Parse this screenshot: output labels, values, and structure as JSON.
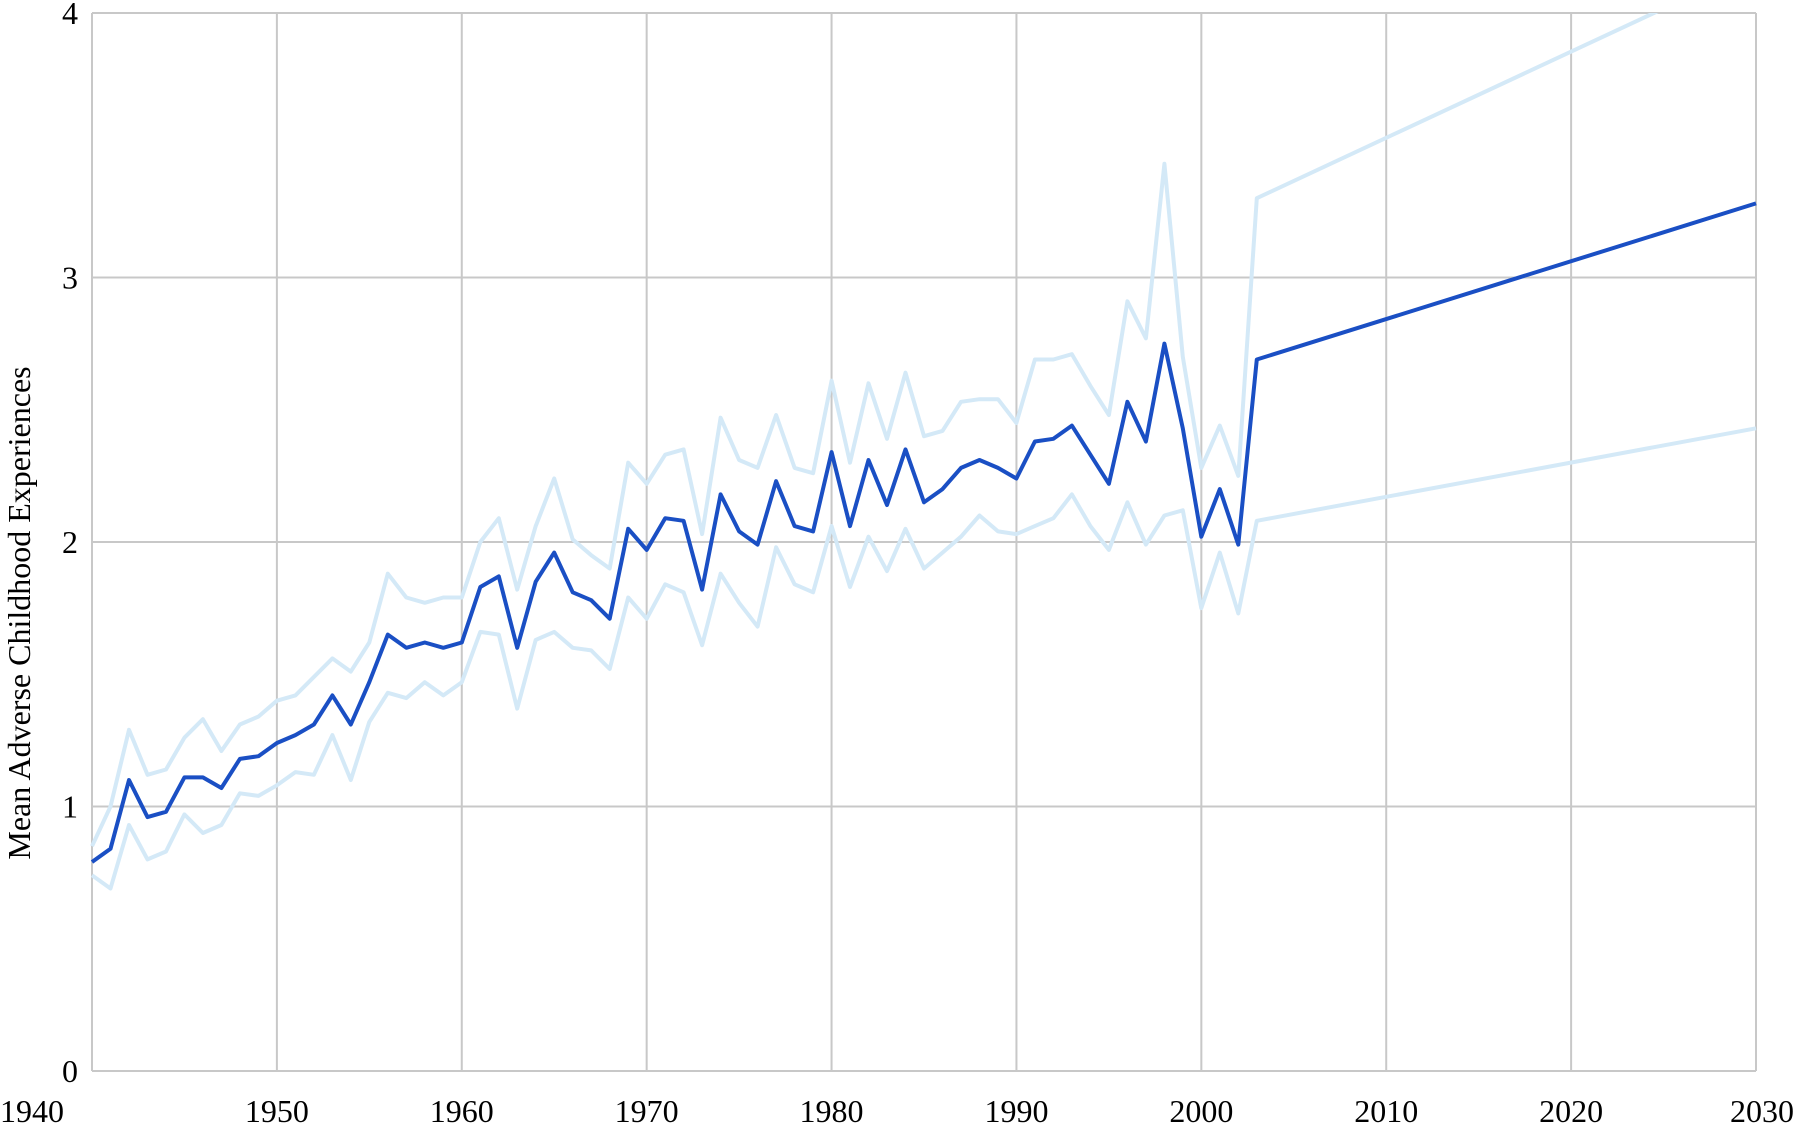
{
  "chart_data": {
    "type": "line",
    "title": "",
    "xlabel": "",
    "ylabel": "Mean Adverse Childhood Experiences",
    "xlim": [
      1940,
      2030
    ],
    "ylim": [
      0,
      4
    ],
    "xticks": [
      1940,
      1950,
      1960,
      1970,
      1980,
      1990,
      2000,
      2010,
      2020,
      2030
    ],
    "yticks": [
      0,
      1,
      2,
      3,
      4
    ],
    "grid": true,
    "legend": "none",
    "colors": {
      "mean": "#1a4fc4",
      "bounds": "#d4e9f7",
      "grid": "#c8c8c8"
    },
    "x": [
      1940,
      1941,
      1942,
      1943,
      1944,
      1945,
      1946,
      1947,
      1948,
      1949,
      1950,
      1951,
      1952,
      1953,
      1954,
      1955,
      1956,
      1957,
      1958,
      1959,
      1960,
      1961,
      1962,
      1963,
      1964,
      1965,
      1966,
      1967,
      1968,
      1969,
      1970,
      1971,
      1972,
      1973,
      1974,
      1975,
      1976,
      1977,
      1978,
      1979,
      1980,
      1981,
      1982,
      1983,
      1984,
      1985,
      1986,
      1987,
      1988,
      1989,
      1990,
      1991,
      1992,
      1993,
      1994,
      1995,
      1996,
      1997,
      1998,
      1999,
      2000,
      2001,
      2002,
      2003,
      2030
    ],
    "series": [
      {
        "role": "upper",
        "values": [
          0.85,
          1.0,
          1.29,
          1.12,
          1.14,
          1.26,
          1.33,
          1.21,
          1.31,
          1.34,
          1.4,
          1.42,
          1.49,
          1.56,
          1.51,
          1.62,
          1.88,
          1.79,
          1.77,
          1.79,
          1.79,
          2.0,
          2.09,
          1.82,
          2.06,
          2.24,
          2.01,
          1.95,
          1.9,
          2.3,
          2.22,
          2.33,
          2.35,
          2.03,
          2.47,
          2.31,
          2.28,
          2.48,
          2.28,
          2.26,
          2.61,
          2.3,
          2.6,
          2.39,
          2.64,
          2.4,
          2.42,
          2.53,
          2.54,
          2.54,
          2.45,
          2.69,
          2.69,
          2.71,
          2.59,
          2.48,
          2.91,
          2.77,
          3.43,
          2.7,
          2.28,
          2.44,
          2.25,
          3.3,
          4.18
        ]
      },
      {
        "role": "mean",
        "values": [
          0.79,
          0.84,
          1.1,
          0.96,
          0.98,
          1.11,
          1.11,
          1.07,
          1.18,
          1.19,
          1.24,
          1.27,
          1.31,
          1.42,
          1.31,
          1.47,
          1.65,
          1.6,
          1.62,
          1.6,
          1.62,
          1.83,
          1.87,
          1.6,
          1.85,
          1.96,
          1.81,
          1.78,
          1.71,
          2.05,
          1.97,
          2.09,
          2.08,
          1.82,
          2.18,
          2.04,
          1.99,
          2.23,
          2.06,
          2.04,
          2.34,
          2.06,
          2.31,
          2.14,
          2.35,
          2.15,
          2.2,
          2.28,
          2.31,
          2.28,
          2.24,
          2.38,
          2.39,
          2.44,
          2.33,
          2.22,
          2.53,
          2.38,
          2.75,
          2.43,
          2.02,
          2.2,
          1.99,
          2.69,
          3.28
        ]
      },
      {
        "role": "lower",
        "values": [
          0.74,
          0.69,
          0.93,
          0.8,
          0.83,
          0.97,
          0.9,
          0.93,
          1.05,
          1.04,
          1.08,
          1.13,
          1.12,
          1.27,
          1.1,
          1.32,
          1.43,
          1.41,
          1.47,
          1.42,
          1.47,
          1.66,
          1.65,
          1.37,
          1.63,
          1.66,
          1.6,
          1.59,
          1.52,
          1.79,
          1.71,
          1.84,
          1.81,
          1.61,
          1.88,
          1.77,
          1.68,
          1.98,
          1.84,
          1.81,
          2.06,
          1.83,
          2.02,
          1.89,
          2.05,
          1.9,
          1.96,
          2.02,
          2.1,
          2.04,
          2.03,
          2.06,
          2.09,
          2.18,
          2.06,
          1.97,
          2.15,
          1.99,
          2.1,
          2.12,
          1.75,
          1.96,
          1.73,
          2.08,
          2.43
        ]
      }
    ]
  }
}
